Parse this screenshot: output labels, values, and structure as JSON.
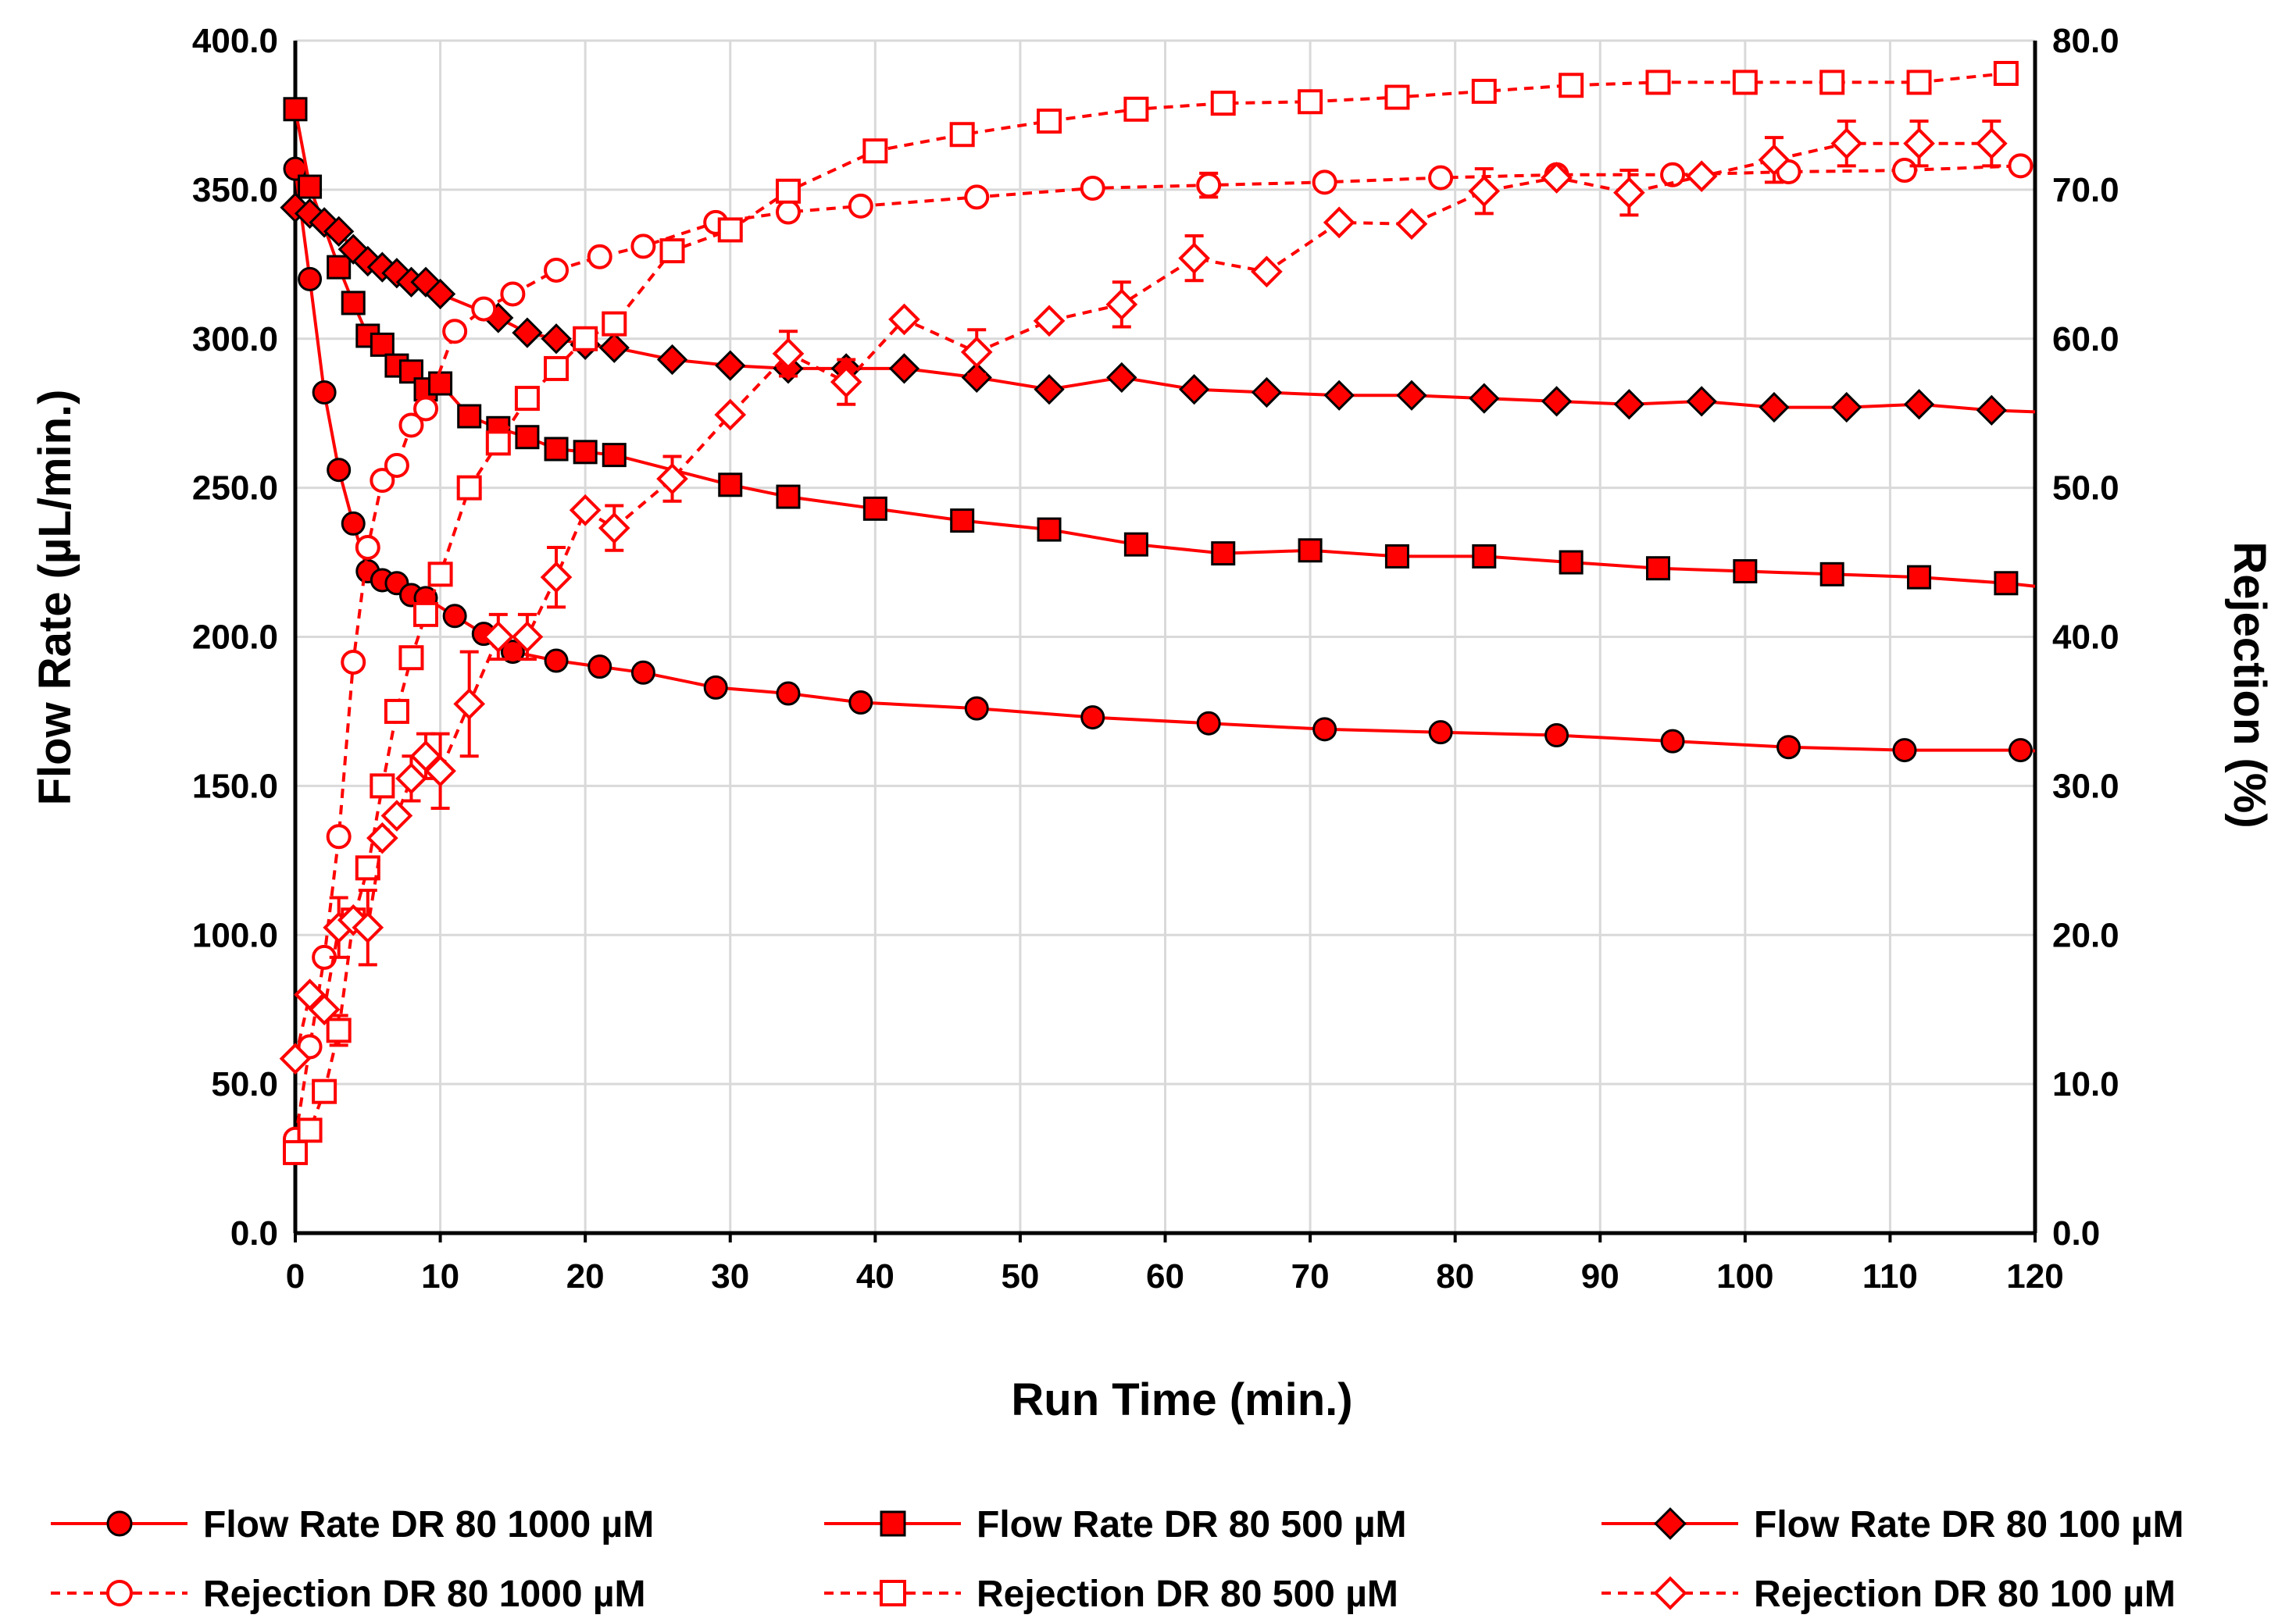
{
  "chart_data": {
    "type": "line",
    "title": "",
    "xlabel": "Run Time (min.)",
    "ylabel_left": "Flow Rate (µL/min.)",
    "ylabel_right": "Rejection (%)",
    "xlim": [
      0,
      120
    ],
    "ylim_left": [
      0,
      400
    ],
    "ylim_right": [
      0,
      80
    ],
    "x_ticks": [
      "0",
      "10",
      "20",
      "30",
      "40",
      "50",
      "60",
      "70",
      "80",
      "90",
      "100",
      "110",
      "120"
    ],
    "y_left_ticks": [
      "0.0",
      "50.0",
      "100.0",
      "150.0",
      "200.0",
      "250.0",
      "300.0",
      "350.0",
      "400.0"
    ],
    "y_right_ticks": [
      "0.0",
      "10.0",
      "20.0",
      "30.0",
      "40.0",
      "50.0",
      "60.0",
      "70.0",
      "80.0"
    ],
    "grid": true,
    "legend_position": "bottom",
    "series": [
      {
        "name": "Flow Rate DR 80 1000 µM",
        "axis": "left",
        "marker": "circle",
        "filled": true,
        "dashed": false,
        "color": "#ff0000",
        "x": [
          0,
          1,
          2,
          3,
          4,
          5,
          6,
          7,
          8,
          9,
          11,
          13,
          15,
          18,
          21,
          24,
          29,
          34,
          39,
          47,
          55,
          63,
          71,
          79,
          87,
          95,
          103,
          111,
          119
        ],
        "y": [
          357,
          320,
          282,
          256,
          238,
          222,
          219,
          218,
          214,
          213,
          207,
          201,
          195,
          192,
          190,
          188,
          183,
          181,
          178,
          176,
          173,
          171,
          169,
          168,
          167,
          165,
          163,
          162,
          162
        ]
      },
      {
        "name": "Flow Rate DR 80 500 µM",
        "axis": "left",
        "marker": "square",
        "filled": true,
        "dashed": false,
        "color": "#ff0000",
        "x": [
          0,
          1,
          3,
          4,
          5,
          6,
          7,
          8,
          9,
          10,
          12,
          14,
          16,
          18,
          20,
          22,
          30,
          34,
          40,
          46,
          52,
          58,
          64,
          70,
          76,
          82,
          88,
          94,
          100,
          106,
          112,
          118
        ],
        "y": [
          377,
          351,
          324,
          312,
          301,
          298,
          291,
          289,
          283,
          285,
          274,
          270,
          267,
          263,
          262,
          261,
          251,
          247,
          243,
          239,
          236,
          231,
          228,
          229,
          227,
          227,
          225,
          223,
          222,
          221,
          220,
          218
        ]
      },
      {
        "name": "Flow Rate DR 80 100 µM",
        "axis": "left",
        "marker": "diamond",
        "filled": true,
        "dashed": false,
        "color": "#ff0000",
        "x": [
          0,
          1,
          2,
          3,
          4,
          5,
          6,
          7,
          8,
          9,
          10,
          14,
          16,
          18,
          20,
          22,
          26,
          30,
          34,
          38,
          42,
          47,
          52,
          57,
          62,
          67,
          72,
          77,
          82,
          87,
          92,
          97,
          102,
          107,
          112,
          117
        ],
        "y": [
          344,
          342,
          339,
          336,
          330,
          326,
          324,
          322,
          319,
          319,
          315,
          307,
          302,
          300,
          298,
          297,
          293,
          291,
          290,
          290,
          290,
          287,
          283,
          287,
          283,
          282,
          281,
          281,
          280,
          279,
          278,
          279,
          277,
          277,
          278,
          276
        ]
      },
      {
        "name": "Rejection DR 80 1000 µM",
        "axis": "right",
        "marker": "circle",
        "filled": false,
        "dashed": true,
        "color": "#ff0000",
        "x": [
          0,
          1,
          2,
          3,
          4,
          5,
          6,
          7,
          8,
          9,
          11,
          13,
          15,
          18,
          21,
          24,
          29,
          34,
          39,
          47,
          55,
          63,
          71,
          79,
          87,
          95,
          103,
          111,
          119
        ],
        "y": [
          6.3,
          12.5,
          18.5,
          26.6,
          38.3,
          46.0,
          50.5,
          51.5,
          54.2,
          55.3,
          60.5,
          62.0,
          63.0,
          64.6,
          65.5,
          66.2,
          67.8,
          68.5,
          68.9,
          69.5,
          70.1,
          70.3,
          70.5,
          70.8,
          71.0,
          71.0,
          71.2,
          71.3,
          71.6
        ],
        "err": [
          0,
          0,
          0,
          0,
          0,
          0,
          0,
          0,
          0,
          0,
          0,
          0,
          0,
          0,
          0,
          0,
          0,
          0,
          0,
          0,
          0,
          0.8,
          0,
          0,
          0,
          0,
          0,
          0,
          0
        ]
      },
      {
        "name": "Rejection DR 80 500 µM",
        "axis": "right",
        "marker": "square",
        "filled": false,
        "dashed": true,
        "color": "#ff0000",
        "x": [
          0,
          1,
          2,
          3,
          4,
          5,
          6,
          7,
          8,
          9,
          10,
          12,
          14,
          16,
          18,
          20,
          22,
          26,
          30,
          34,
          40,
          46,
          52,
          58,
          64,
          70,
          76,
          82,
          88,
          94,
          100,
          106,
          112,
          118
        ],
        "y": [
          5.4,
          6.9,
          9.5,
          13.6,
          21.0,
          24.5,
          30.0,
          35.0,
          38.6,
          41.5,
          44.2,
          50.0,
          53.0,
          56.0,
          58.0,
          60.0,
          61.0,
          65.9,
          67.3,
          69.9,
          72.6,
          73.7,
          74.6,
          75.4,
          75.8,
          75.9,
          76.2,
          76.6,
          77.0,
          77.2,
          77.2,
          77.2,
          77.2,
          77.8
        ],
        "err": [
          0,
          0,
          0,
          1.0,
          0,
          0,
          0,
          0,
          0,
          0,
          0,
          0,
          0,
          0,
          0,
          0,
          0,
          0,
          0,
          0,
          0,
          0,
          0,
          0,
          0,
          0,
          0,
          0,
          0,
          0,
          0,
          0,
          0,
          0
        ]
      },
      {
        "name": "Rejection DR 80 100 µM",
        "axis": "right",
        "marker": "diamond",
        "filled": false,
        "dashed": true,
        "color": "#ff0000",
        "x": [
          0,
          1,
          2,
          3,
          4,
          5,
          6,
          7,
          8,
          9,
          10,
          12,
          14,
          16,
          18,
          20,
          22,
          26,
          30,
          34,
          38,
          42,
          47,
          52,
          57,
          62,
          67,
          72,
          77,
          82,
          87,
          92,
          97,
          102,
          107,
          112,
          117
        ],
        "y": [
          11.7,
          16.0,
          15.0,
          20.5,
          21.0,
          20.5,
          26.5,
          28.0,
          30.5,
          32.0,
          31.0,
          35.5,
          40.0,
          40.0,
          44.0,
          48.5,
          47.3,
          50.6,
          54.9,
          59.0,
          57.1,
          61.3,
          59.1,
          61.2,
          62.3,
          65.4,
          64.5,
          67.8,
          67.7,
          69.9,
          70.8,
          69.8,
          70.9,
          72.0,
          73.1,
          73.1,
          73.1
        ],
        "err": [
          0,
          0,
          0,
          2.0,
          0,
          2.5,
          0,
          0,
          1.5,
          1.5,
          2.5,
          3.5,
          1.5,
          1.5,
          2.0,
          0,
          1.5,
          1.5,
          0,
          1.5,
          1.5,
          0,
          1.5,
          0,
          1.5,
          1.5,
          0,
          0,
          0,
          1.5,
          0,
          1.5,
          0,
          1.5,
          1.5,
          1.5,
          1.5
        ]
      }
    ]
  }
}
